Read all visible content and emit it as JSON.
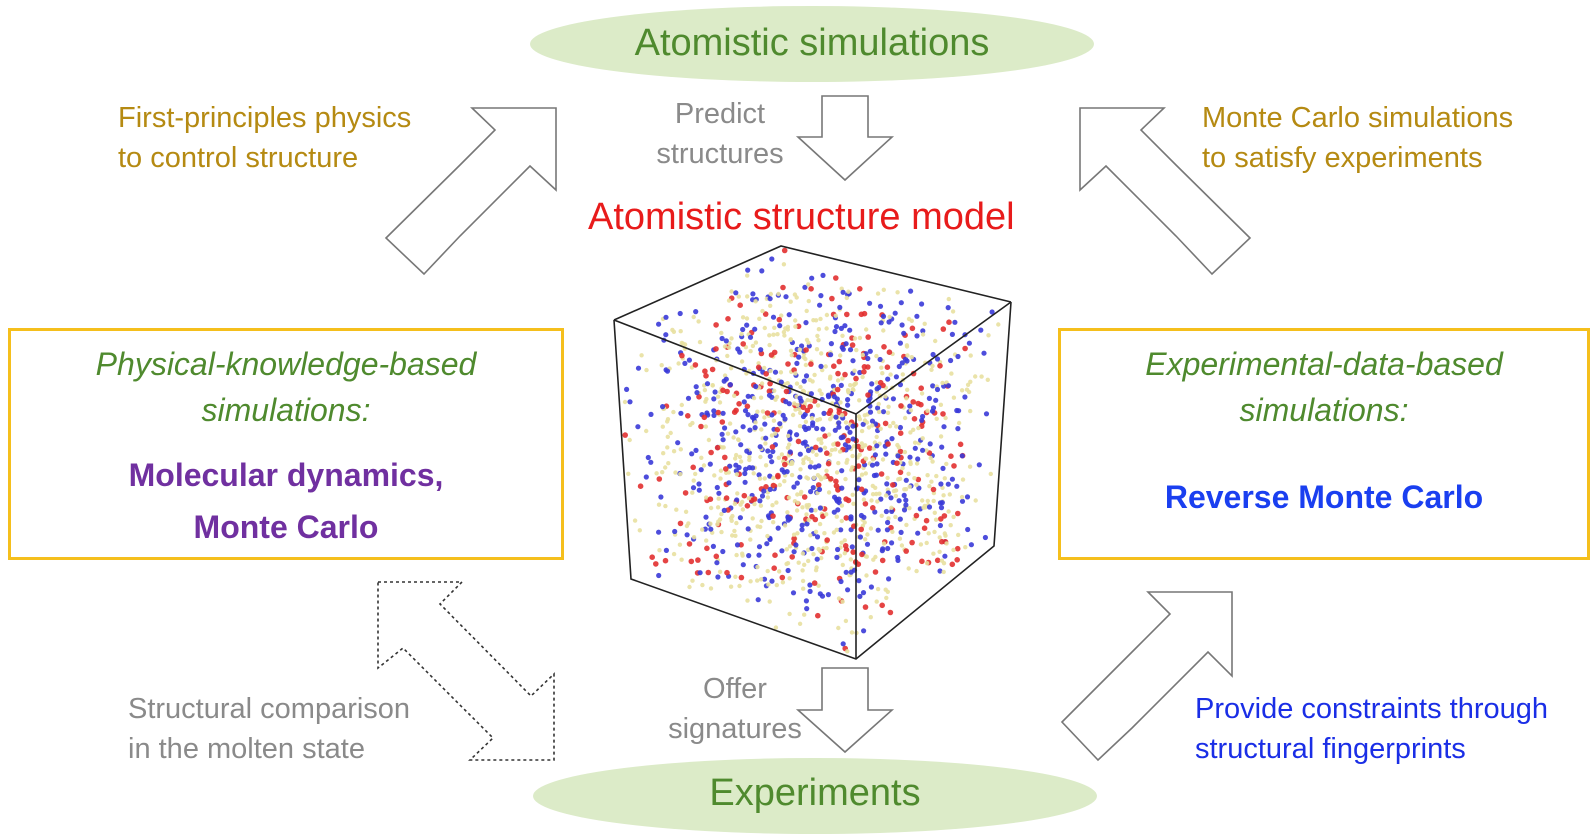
{
  "top_ellipse": {
    "label": "Atomistic simulations",
    "fill": "#dcebc8"
  },
  "bottom_ellipse": {
    "label": "Experiments",
    "fill": "#dcebc8"
  },
  "model_title": "Atomistic structure model",
  "arrows": {
    "predict": "Predict\nstructures",
    "offer": "Offer\nsignatures",
    "first_principles": "First-principles physics\nto control structure",
    "monte_carlo_sims": "Monte Carlo simulations\nto satisfy experiments",
    "structural_comparison": "Structural comparison\nin the molten state",
    "provide_constraints": "Provide constraints through\nstructural fingerprints"
  },
  "left_box": {
    "subtitle": "Physical-knowledge-based\nsimulations:",
    "methods": "Molecular dynamics,\nMonte Carlo"
  },
  "right_box": {
    "subtitle": "Experimental-data-based\nsimulations:",
    "methods": "Reverse Monte Carlo"
  },
  "colors": {
    "box_border": "#f5bf1c",
    "atom_red": "#e23030",
    "atom_blue": "#3a3ad8",
    "atom_yellow": "#e8e0a0"
  }
}
